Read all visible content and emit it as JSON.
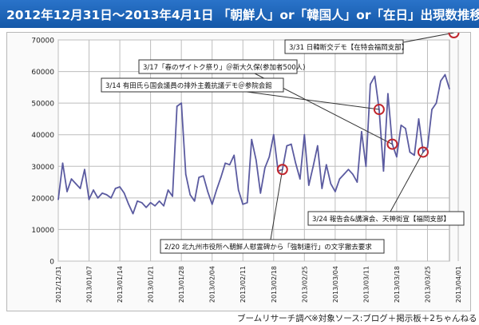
{
  "header": {
    "title": "2012年12月31日～2013年4月1日 「朝鮮人」or「韓国人」or「在日」出現数推移",
    "bg_color": "#1f67bb"
  },
  "footer": {
    "source": "ブームリサーチ調べ",
    "note": "※対象ソース:ブログ＋掲示板＋2ちゃんねる"
  },
  "chart_data": {
    "type": "line",
    "title": "",
    "xlabel": "",
    "ylabel": "",
    "ylim": [
      0,
      70000
    ],
    "yticks": [
      0,
      10000,
      20000,
      30000,
      40000,
      50000,
      60000,
      70000
    ],
    "grid": true,
    "line_color": "#5b5ba0",
    "marker_color": "#c0262d",
    "x_tick_labels": [
      "2012/12/31",
      "2013/01/07",
      "2013/01/14",
      "2013/01/21",
      "2013/01/28",
      "2013/02/04",
      "2013/02/11",
      "2013/02/18",
      "2013/02/25",
      "2013/03/04",
      "2013/03/11",
      "2013/03/18",
      "2013/03/25",
      "2013/04/01"
    ],
    "series": [
      {
        "values": [
          19500,
          31000,
          22000,
          26000,
          24500,
          23000,
          29000,
          19500,
          22500,
          20000,
          21500,
          21000,
          20000,
          23000,
          23500,
          21500,
          18000,
          15000,
          19000,
          18500,
          17000,
          18500,
          17500,
          19000,
          17500,
          22500,
          20500,
          49000,
          50000,
          27500,
          21000,
          19000,
          26500,
          27000,
          22000,
          18000,
          22500,
          26500,
          31000,
          30500,
          33500,
          22500,
          18000,
          18500,
          38500,
          32000,
          21500,
          29500,
          33000,
          40000,
          28500,
          29000,
          36500,
          37000,
          31000,
          26000,
          40000,
          24000,
          30000,
          36500,
          23000,
          30500,
          24500,
          22000,
          26000,
          27500,
          29000,
          27500,
          25000,
          41000,
          30000,
          56000,
          58500,
          48000,
          28500,
          53000,
          37000,
          33000,
          43000,
          42000,
          34500,
          33500,
          45000,
          34500,
          36000,
          48000,
          50000,
          57000,
          59000,
          54500
        ]
      }
    ],
    "annotations": [
      {
        "text": "3/31 日韓断交デモ【在特会福岡支部】",
        "target_index": 90
      },
      {
        "text": "3/17「春のザイトク祭り」＠新大久保(参加者500人)",
        "target_index": 76
      },
      {
        "text": "3/14 有田氏ら国会議員の排外主義抗議デモ＠参院会館",
        "target_index": 73
      },
      {
        "text": "3/24 報告会&講演会、天神街宣【福岡支部】",
        "target_index": 83
      },
      {
        "text": "2/20 北九州市役所へ朝鮮人慰霊碑から「強制連行」の文字撤去要求",
        "target_index": 51
      }
    ]
  }
}
